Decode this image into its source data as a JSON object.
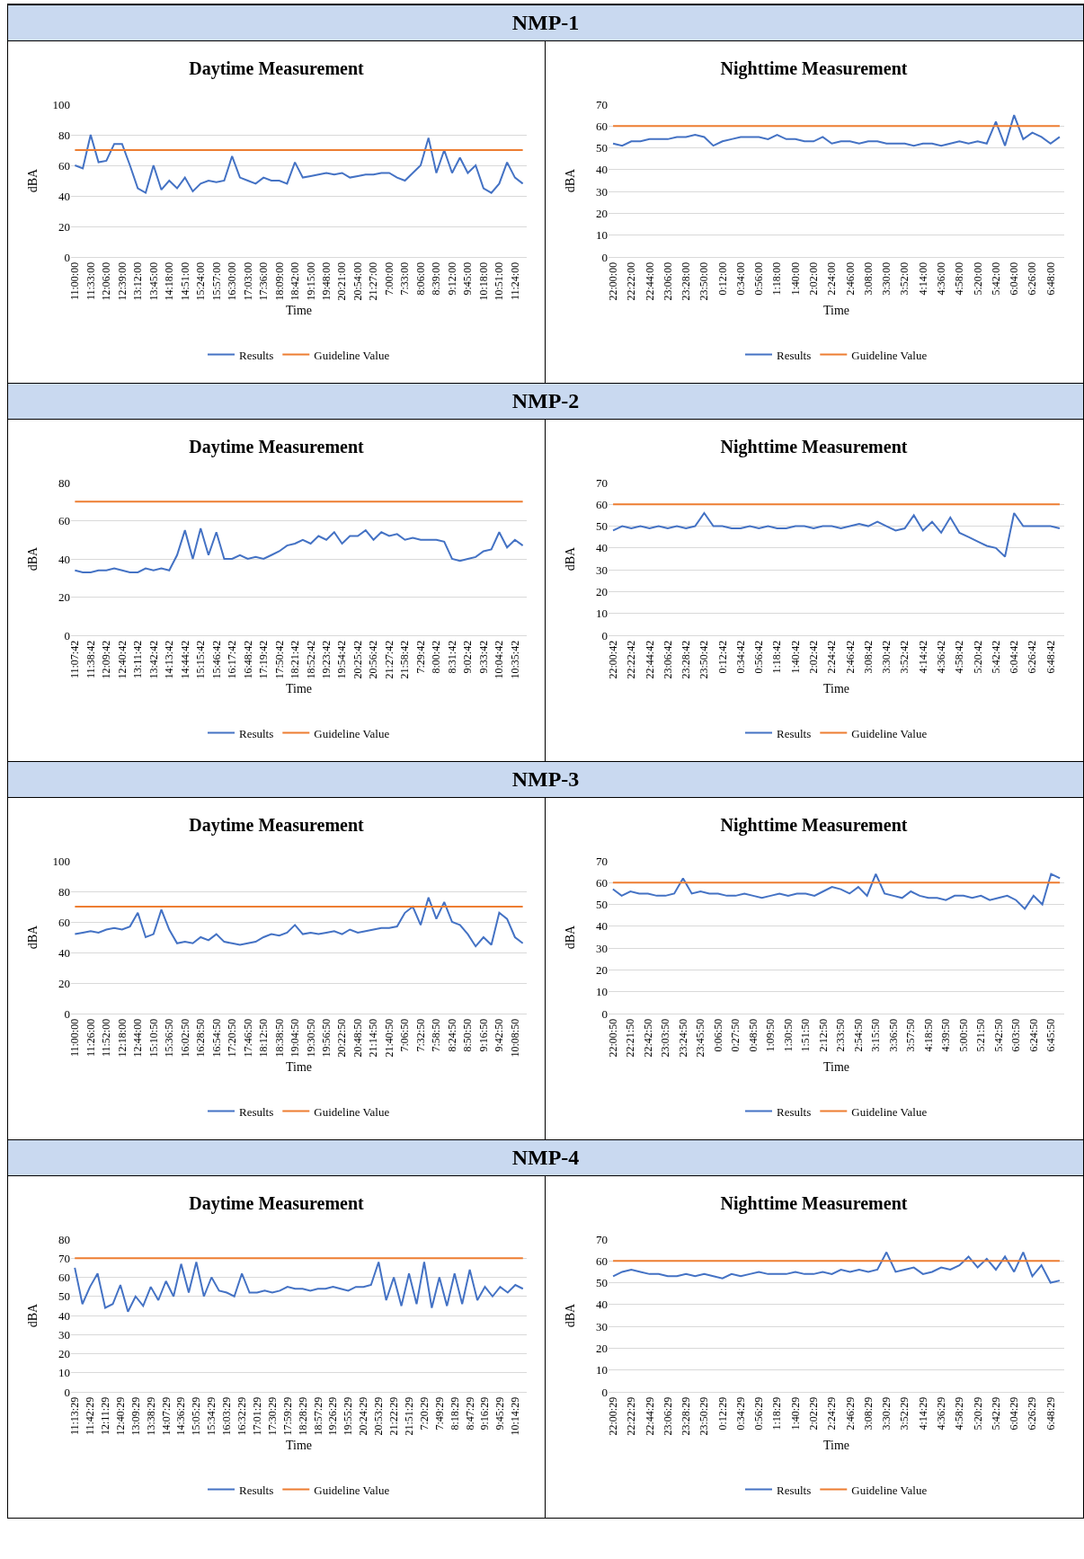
{
  "chart_data": [
    {
      "type": "line",
      "title": "Daytime Measurement",
      "xlabel": "Time",
      "ylabel": "dBA",
      "annotations": [
        "NMP-1"
      ],
      "categories": [
        "11:00:00",
        null,
        "11:33:00",
        null,
        "12:06:00",
        null,
        "12:39:00",
        null,
        "13:12:00",
        null,
        "13:45:00",
        null,
        "14:18:00",
        null,
        "14:51:00",
        null,
        "15:24:00",
        null,
        "15:57:00",
        null,
        "16:30:00",
        null,
        "17:03:00",
        null,
        "17:36:00",
        null,
        "18:09:00",
        null,
        "18:42:00",
        null,
        "19:15:00",
        null,
        "19:48:00",
        null,
        "20:21:00",
        null,
        "20:54:00",
        null,
        "21:27:00",
        null,
        "7:00:00",
        null,
        "7:33:00",
        null,
        "8:06:00",
        null,
        "8:39:00",
        null,
        "9:12:00",
        null,
        "9:45:00",
        null,
        "10:18:00",
        null,
        "10:51:00",
        null,
        "11:24:00",
        null
      ],
      "series": [
        {
          "name": "Results",
          "color": "#4472c4",
          "values": [
            60,
            58,
            80,
            62,
            63,
            74,
            74,
            60,
            45,
            42,
            60,
            44,
            50,
            45,
            52,
            43,
            48,
            50,
            49,
            50,
            66,
            52,
            50,
            48,
            52,
            50,
            50,
            48,
            62,
            52,
            53,
            54,
            55,
            54,
            55,
            52,
            53,
            54,
            54,
            55,
            55,
            52,
            50,
            55,
            60,
            78,
            55,
            70,
            55,
            65,
            55,
            60,
            45,
            42,
            48,
            62,
            52,
            48
          ]
        },
        {
          "name": "Guideline Value",
          "color": "#ed7d31",
          "values": [
            70,
            70,
            70,
            70,
            70,
            70,
            70,
            70,
            70,
            70,
            70,
            70,
            70,
            70,
            70,
            70,
            70,
            70,
            70,
            70,
            70,
            70,
            70,
            70,
            70,
            70,
            70,
            70,
            70,
            70,
            70,
            70,
            70,
            70,
            70,
            70,
            70,
            70,
            70,
            70,
            70,
            70,
            70,
            70,
            70,
            70,
            70,
            70,
            70,
            70,
            70,
            70,
            70,
            70,
            70,
            70,
            70,
            70
          ]
        }
      ],
      "ylim": [
        0,
        100
      ],
      "yticks": [
        0,
        20,
        40,
        60,
        80,
        100
      ],
      "grid": "y",
      "legend": "bottom",
      "marker": "none",
      "line_style": "solid"
    },
    {
      "type": "line",
      "title": "Nighttime Measurement",
      "xlabel": "Time",
      "ylabel": "dBA",
      "categories": [
        "22:00:00",
        null,
        "22:22:00",
        null,
        "22:44:00",
        null,
        "23:06:00",
        null,
        "23:28:00",
        null,
        "23:50:00",
        null,
        "0:12:00",
        null,
        "0:34:00",
        null,
        "0:56:00",
        null,
        "1:18:00",
        null,
        "1:40:00",
        null,
        "2:02:00",
        null,
        "2:24:00",
        null,
        "2:46:00",
        null,
        "3:08:00",
        null,
        "3:30:00",
        null,
        "3:52:00",
        null,
        "4:14:00",
        null,
        "4:36:00",
        null,
        "4:58:00",
        null,
        "5:20:00",
        null,
        "5:42:00",
        null,
        "6:04:00",
        null,
        "6:26:00",
        null,
        "6:48:00",
        null
      ],
      "series": [
        {
          "name": "Results",
          "color": "#4472c4",
          "values": [
            52,
            51,
            53,
            53,
            54,
            54,
            54,
            55,
            55,
            56,
            55,
            51,
            53,
            54,
            55,
            55,
            55,
            54,
            56,
            54,
            54,
            53,
            53,
            55,
            52,
            53,
            53,
            52,
            53,
            53,
            52,
            52,
            52,
            51,
            52,
            52,
            51,
            52,
            53,
            52,
            53,
            52,
            62,
            51,
            65,
            54,
            57,
            55,
            52,
            55
          ]
        },
        {
          "name": "Guideline Value",
          "color": "#ed7d31",
          "values": [
            60,
            60,
            60,
            60,
            60,
            60,
            60,
            60,
            60,
            60,
            60,
            60,
            60,
            60,
            60,
            60,
            60,
            60,
            60,
            60,
            60,
            60,
            60,
            60,
            60,
            60,
            60,
            60,
            60,
            60,
            60,
            60,
            60,
            60,
            60,
            60,
            60,
            60,
            60,
            60,
            60,
            60,
            60,
            60,
            60,
            60,
            60,
            60,
            60,
            60
          ]
        }
      ],
      "ylim": [
        0,
        70
      ],
      "yticks": [
        0,
        10,
        20,
        30,
        40,
        50,
        60,
        70
      ],
      "grid": "y",
      "legend": "bottom",
      "marker": "none",
      "line_style": "solid"
    },
    {
      "type": "line",
      "title": "Daytime Measurement",
      "xlabel": "Time",
      "ylabel": "dBA",
      "annotations": [
        "NMP-2"
      ],
      "categories": [
        "11:07:42",
        null,
        "11:38:42",
        null,
        "12:09:42",
        null,
        "12:40:42",
        null,
        "13:11:42",
        null,
        "13:42:42",
        null,
        "14:13:42",
        null,
        "14:44:42",
        null,
        "15:15:42",
        null,
        "15:46:42",
        null,
        "16:17:42",
        null,
        "16:48:42",
        null,
        "17:19:42",
        null,
        "17:50:42",
        null,
        "18:21:42",
        null,
        "18:52:42",
        null,
        "19:23:42",
        null,
        "19:54:42",
        null,
        "20:25:42",
        null,
        "20:56:42",
        null,
        "21:27:42",
        null,
        "21:58:42",
        null,
        "7:29:42",
        null,
        "8:00:42",
        null,
        "8:31:42",
        null,
        "9:02:42",
        null,
        "9:33:42",
        null,
        "10:04:42",
        null,
        "10:35:42",
        null
      ],
      "series": [
        {
          "name": "Results",
          "color": "#4472c4",
          "values": [
            34,
            33,
            33,
            34,
            34,
            35,
            34,
            33,
            33,
            35,
            34,
            35,
            34,
            42,
            55,
            40,
            56,
            42,
            54,
            40,
            40,
            42,
            40,
            41,
            40,
            42,
            44,
            47,
            48,
            50,
            48,
            52,
            50,
            54,
            48,
            52,
            52,
            55,
            50,
            54,
            52,
            53,
            50,
            51,
            50,
            50,
            50,
            49,
            40,
            39,
            40,
            41,
            44,
            45,
            54,
            46,
            50,
            47
          ]
        },
        {
          "name": "Guideline Value",
          "color": "#ed7d31",
          "values": [
            70,
            70,
            70,
            70,
            70,
            70,
            70,
            70,
            70,
            70,
            70,
            70,
            70,
            70,
            70,
            70,
            70,
            70,
            70,
            70,
            70,
            70,
            70,
            70,
            70,
            70,
            70,
            70,
            70,
            70,
            70,
            70,
            70,
            70,
            70,
            70,
            70,
            70,
            70,
            70,
            70,
            70,
            70,
            70,
            70,
            70,
            70,
            70,
            70,
            70,
            70,
            70,
            70,
            70,
            70,
            70,
            70,
            70
          ]
        }
      ],
      "ylim": [
        0,
        80
      ],
      "yticks": [
        0,
        20,
        40,
        60,
        80
      ],
      "grid": "y",
      "legend": "bottom",
      "marker": "none",
      "line_style": "solid"
    },
    {
      "type": "line",
      "title": "Nighttime Measurement",
      "xlabel": "Time",
      "ylabel": "dBA",
      "categories": [
        "22:00:42",
        null,
        "22:22:42",
        null,
        "22:44:42",
        null,
        "23:06:42",
        null,
        "23:28:42",
        null,
        "23:50:42",
        null,
        "0:12:42",
        null,
        "0:34:42",
        null,
        "0:56:42",
        null,
        "1:18:42",
        null,
        "1:40:42",
        null,
        "2:02:42",
        null,
        "2:24:42",
        null,
        "2:46:42",
        null,
        "3:08:42",
        null,
        "3:30:42",
        null,
        "3:52:42",
        null,
        "4:14:42",
        null,
        "4:36:42",
        null,
        "4:58:42",
        null,
        "5:20:42",
        null,
        "5:42:42",
        null,
        "6:04:42",
        null,
        "6:26:42",
        null,
        "6:48:42",
        null
      ],
      "series": [
        {
          "name": "Results",
          "color": "#4472c4",
          "values": [
            48,
            50,
            49,
            50,
            49,
            50,
            49,
            50,
            49,
            50,
            56,
            50,
            50,
            49,
            49,
            50,
            49,
            50,
            49,
            49,
            50,
            50,
            49,
            50,
            50,
            49,
            50,
            51,
            50,
            52,
            50,
            48,
            49,
            55,
            48,
            52,
            47,
            54,
            47,
            45,
            43,
            41,
            40,
            36,
            56,
            50,
            50,
            50,
            50,
            49
          ]
        },
        {
          "name": "Guideline Value",
          "color": "#ed7d31",
          "values": [
            60,
            60,
            60,
            60,
            60,
            60,
            60,
            60,
            60,
            60,
            60,
            60,
            60,
            60,
            60,
            60,
            60,
            60,
            60,
            60,
            60,
            60,
            60,
            60,
            60,
            60,
            60,
            60,
            60,
            60,
            60,
            60,
            60,
            60,
            60,
            60,
            60,
            60,
            60,
            60,
            60,
            60,
            60,
            60,
            60,
            60,
            60,
            60,
            60,
            60
          ]
        }
      ],
      "ylim": [
        0,
        70
      ],
      "yticks": [
        0,
        10,
        20,
        30,
        40,
        50,
        60,
        70
      ],
      "grid": "y",
      "legend": "bottom",
      "marker": "none",
      "line_style": "solid"
    },
    {
      "type": "line",
      "title": "Daytime Measurement",
      "xlabel": "Time",
      "ylabel": "dBA",
      "annotations": [
        "NMP-3"
      ],
      "categories": [
        "11:00:00",
        null,
        "11:26:00",
        null,
        "11:52:00",
        null,
        "12:18:00",
        null,
        "12:44:00",
        null,
        "15:10:50",
        null,
        "15:36:50",
        null,
        "16:02:50",
        null,
        "16:28:50",
        null,
        "16:54:50",
        null,
        "17:20:50",
        null,
        "17:46:50",
        null,
        "18:12:50",
        null,
        "18:38:50",
        null,
        "19:04:50",
        null,
        "19:30:50",
        null,
        "19:56:50",
        null,
        "20:22:50",
        null,
        "20:48:50",
        null,
        "21:14:50",
        null,
        "21:40:50",
        null,
        "7:06:50",
        null,
        "7:32:50",
        null,
        "7:58:50",
        null,
        "8:24:50",
        null,
        "8:50:50",
        null,
        "9:16:50",
        null,
        "9:42:50",
        null,
        "10:08:50",
        null
      ],
      "series": [
        {
          "name": "Results",
          "color": "#4472c4",
          "values": [
            52,
            53,
            54,
            53,
            55,
            56,
            55,
            57,
            66,
            50,
            52,
            68,
            55,
            46,
            47,
            46,
            50,
            48,
            52,
            47,
            46,
            45,
            46,
            47,
            50,
            52,
            51,
            53,
            58,
            52,
            53,
            52,
            53,
            54,
            52,
            55,
            53,
            54,
            55,
            56,
            56,
            57,
            66,
            70,
            58,
            76,
            62,
            73,
            60,
            58,
            52,
            44,
            50,
            45,
            66,
            62,
            50,
            46
          ]
        },
        {
          "name": "Guideline Value",
          "color": "#ed7d31",
          "values": [
            70,
            70,
            70,
            70,
            70,
            70,
            70,
            70,
            70,
            70,
            70,
            70,
            70,
            70,
            70,
            70,
            70,
            70,
            70,
            70,
            70,
            70,
            70,
            70,
            70,
            70,
            70,
            70,
            70,
            70,
            70,
            70,
            70,
            70,
            70,
            70,
            70,
            70,
            70,
            70,
            70,
            70,
            70,
            70,
            70,
            70,
            70,
            70,
            70,
            70,
            70,
            70,
            70,
            70,
            70,
            70,
            70,
            70
          ]
        }
      ],
      "ylim": [
        0,
        100
      ],
      "yticks": [
        0,
        20,
        40,
        60,
        80,
        100
      ],
      "grid": "y",
      "legend": "bottom",
      "marker": "none",
      "line_style": "solid"
    },
    {
      "type": "line",
      "title": "Nighttime Measurement",
      "xlabel": "Time",
      "ylabel": "dBA",
      "categories": [
        "22:00:50",
        null,
        "22:21:50",
        null,
        "22:42:50",
        null,
        "23:03:50",
        null,
        "23:24:50",
        null,
        "23:45:50",
        null,
        "0:06:50",
        null,
        "0:27:50",
        null,
        "0:48:50",
        null,
        "1:09:50",
        null,
        "1:30:50",
        null,
        "1:51:50",
        null,
        "2:12:50",
        null,
        "2:33:50",
        null,
        "2:54:50",
        null,
        "3:15:50",
        null,
        "3:36:50",
        null,
        "3:57:50",
        null,
        "4:18:50",
        null,
        "4:39:50",
        null,
        "5:00:50",
        null,
        "5:21:50",
        null,
        "5:42:50",
        null,
        "6:03:50",
        null,
        "6:24:50",
        null,
        "6:45:50",
        null
      ],
      "series": [
        {
          "name": "Results",
          "color": "#4472c4",
          "values": [
            57,
            54,
            56,
            55,
            55,
            54,
            54,
            55,
            62,
            55,
            56,
            55,
            55,
            54,
            54,
            55,
            54,
            53,
            54,
            55,
            54,
            55,
            55,
            54,
            56,
            58,
            57,
            55,
            58,
            54,
            64,
            55,
            54,
            53,
            56,
            54,
            53,
            53,
            52,
            54,
            54,
            53,
            54,
            52,
            53,
            54,
            52,
            48,
            54,
            50,
            64,
            62
          ]
        },
        {
          "name": "Guideline Value",
          "color": "#ed7d31",
          "values": [
            60,
            60,
            60,
            60,
            60,
            60,
            60,
            60,
            60,
            60,
            60,
            60,
            60,
            60,
            60,
            60,
            60,
            60,
            60,
            60,
            60,
            60,
            60,
            60,
            60,
            60,
            60,
            60,
            60,
            60,
            60,
            60,
            60,
            60,
            60,
            60,
            60,
            60,
            60,
            60,
            60,
            60,
            60,
            60,
            60,
            60,
            60,
            60,
            60,
            60,
            60,
            60
          ]
        }
      ],
      "ylim": [
        0,
        70
      ],
      "yticks": [
        0,
        10,
        20,
        30,
        40,
        50,
        60,
        70
      ],
      "grid": "y",
      "legend": "bottom",
      "marker": "none",
      "line_style": "solid"
    },
    {
      "type": "line",
      "title": "Daytime Measurement",
      "xlabel": "Time",
      "ylabel": "dBA",
      "annotations": [
        "NMP-4"
      ],
      "categories": [
        "11:13:29",
        null,
        "11:42:29",
        null,
        "12:11:29",
        null,
        "12:40:29",
        null,
        "13:09:29",
        null,
        "13:38:29",
        null,
        "14:07:29",
        null,
        "14:36:29",
        null,
        "15:05:29",
        null,
        "15:34:29",
        null,
        "16:03:29",
        null,
        "16:32:29",
        null,
        "17:01:29",
        null,
        "17:30:29",
        null,
        "17:59:29",
        null,
        "18:28:29",
        null,
        "18:57:29",
        null,
        "19:26:29",
        null,
        "19:55:29",
        null,
        "20:24:29",
        null,
        "20:53:29",
        null,
        "21:22:29",
        null,
        "21:51:29",
        null,
        "7:20:29",
        null,
        "7:49:29",
        null,
        "8:18:29",
        null,
        "8:47:29",
        null,
        "9:16:29",
        null,
        "9:45:29",
        null,
        "10:14:29",
        null
      ],
      "series": [
        {
          "name": "Results",
          "color": "#4472c4",
          "values": [
            65,
            46,
            55,
            62,
            44,
            46,
            56,
            42,
            50,
            45,
            55,
            48,
            58,
            50,
            67,
            52,
            68,
            50,
            60,
            53,
            52,
            50,
            62,
            52,
            52,
            53,
            52,
            53,
            55,
            54,
            54,
            53,
            54,
            54,
            55,
            54,
            53,
            55,
            55,
            56,
            68,
            48,
            60,
            45,
            62,
            46,
            68,
            44,
            60,
            45,
            62,
            46,
            64,
            48,
            55,
            50,
            55,
            52,
            56,
            54
          ]
        },
        {
          "name": "Guideline Value",
          "color": "#ed7d31",
          "values": [
            70,
            70,
            70,
            70,
            70,
            70,
            70,
            70,
            70,
            70,
            70,
            70,
            70,
            70,
            70,
            70,
            70,
            70,
            70,
            70,
            70,
            70,
            70,
            70,
            70,
            70,
            70,
            70,
            70,
            70,
            70,
            70,
            70,
            70,
            70,
            70,
            70,
            70,
            70,
            70,
            70,
            70,
            70,
            70,
            70,
            70,
            70,
            70,
            70,
            70,
            70,
            70,
            70,
            70,
            70,
            70,
            70,
            70,
            70,
            70
          ]
        }
      ],
      "ylim": [
        0,
        80
      ],
      "yticks": [
        0,
        10,
        20,
        30,
        40,
        50,
        60,
        70,
        80
      ],
      "grid": "y",
      "legend": "bottom",
      "marker": "none",
      "line_style": "solid"
    },
    {
      "type": "line",
      "title": "Nighttime Measurement",
      "xlabel": "Time",
      "ylabel": "dBA",
      "categories": [
        "22:00:29",
        null,
        "22:22:29",
        null,
        "22:44:29",
        null,
        "23:06:29",
        null,
        "23:28:29",
        null,
        "23:50:29",
        null,
        "0:12:29",
        null,
        "0:34:29",
        null,
        "0:56:29",
        null,
        "1:18:29",
        null,
        "1:40:29",
        null,
        "2:02:29",
        null,
        "2:24:29",
        null,
        "2:46:29",
        null,
        "3:08:29",
        null,
        "3:30:29",
        null,
        "3:52:29",
        null,
        "4:14:29",
        null,
        "4:36:29",
        null,
        "4:58:29",
        null,
        "5:20:29",
        null,
        "5:42:29",
        null,
        "6:04:29",
        null,
        "6:26:29",
        null,
        "6:48:29",
        null
      ],
      "series": [
        {
          "name": "Results",
          "color": "#4472c4",
          "values": [
            53,
            55,
            56,
            55,
            54,
            54,
            53,
            53,
            54,
            53,
            54,
            53,
            52,
            54,
            53,
            54,
            55,
            54,
            54,
            54,
            55,
            54,
            54,
            55,
            54,
            56,
            55,
            56,
            55,
            56,
            64,
            55,
            56,
            57,
            54,
            55,
            57,
            56,
            58,
            62,
            57,
            61,
            56,
            62,
            55,
            64,
            53,
            58,
            50,
            51
          ]
        },
        {
          "name": "Guideline Value",
          "color": "#ed7d31",
          "values": [
            60,
            60,
            60,
            60,
            60,
            60,
            60,
            60,
            60,
            60,
            60,
            60,
            60,
            60,
            60,
            60,
            60,
            60,
            60,
            60,
            60,
            60,
            60,
            60,
            60,
            60,
            60,
            60,
            60,
            60,
            60,
            60,
            60,
            60,
            60,
            60,
            60,
            60,
            60,
            60,
            60,
            60,
            60,
            60,
            60,
            60,
            60,
            60,
            60,
            60
          ]
        }
      ],
      "ylim": [
        0,
        70
      ],
      "yticks": [
        0,
        10,
        20,
        30,
        40,
        50,
        60,
        70
      ],
      "grid": "y",
      "legend": "bottom",
      "marker": "none",
      "line_style": "solid"
    }
  ]
}
